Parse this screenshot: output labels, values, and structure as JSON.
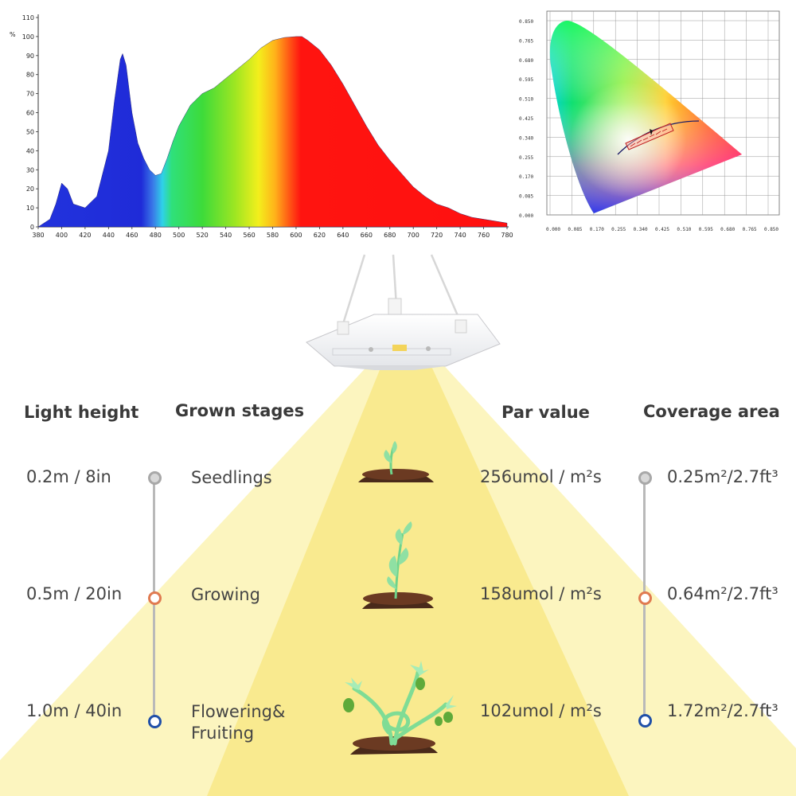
{
  "spectrum_chart": {
    "type": "area",
    "unit_label": "%",
    "x_ticks": [
      "380",
      "400",
      "420",
      "440",
      "460",
      "480",
      "500",
      "520",
      "540",
      "560",
      "580",
      "600",
      "620",
      "640",
      "660",
      "680",
      "700",
      "720",
      "740",
      "760",
      "780"
    ],
    "y_ticks": [
      "0",
      "10",
      "20",
      "30",
      "40",
      "50",
      "60",
      "70",
      "80",
      "90",
      "100",
      "110"
    ],
    "xlim": [
      380,
      780
    ],
    "ylim": [
      0,
      110
    ]
  },
  "chart_data": {
    "type": "area",
    "title": "",
    "xlabel": "",
    "ylabel": "%",
    "xlim": [
      380,
      780
    ],
    "ylim": [
      0,
      110
    ],
    "x": [
      380,
      390,
      395,
      400,
      405,
      410,
      420,
      430,
      440,
      445,
      450,
      452,
      455,
      460,
      465,
      470,
      475,
      480,
      485,
      490,
      495,
      500,
      510,
      520,
      530,
      540,
      550,
      560,
      570,
      580,
      590,
      600,
      605,
      610,
      620,
      630,
      640,
      650,
      660,
      670,
      680,
      690,
      700,
      710,
      720,
      730,
      740,
      750,
      760,
      770,
      780
    ],
    "values": [
      0,
      4,
      12,
      23,
      20,
      12,
      10,
      16,
      40,
      66,
      88,
      91,
      85,
      60,
      44,
      36,
      30,
      27,
      28,
      36,
      45,
      53,
      64,
      70,
      73,
      78,
      83,
      88,
      94,
      98,
      99.5,
      100,
      100,
      98,
      93,
      85,
      75,
      64,
      53,
      43,
      35,
      28,
      21,
      16,
      12,
      10,
      7,
      5,
      4,
      3,
      2
    ]
  },
  "cie_chart": {
    "y_ticks": [
      "0.850",
      "0.765",
      "0.680",
      "0.595",
      "0.510",
      "0.425",
      "0.340",
      "0.255",
      "0.170",
      "0.085",
      "0.000"
    ],
    "x_ticks": [
      "0.000",
      "0.085",
      "0.170",
      "0.255",
      "0.340",
      "0.425",
      "0.510",
      "0.595",
      "0.680",
      "0.765",
      "0.850"
    ]
  },
  "headers": {
    "light_height": "Light height",
    "grown_stages": "Grown stages",
    "par_value": "Par value",
    "coverage_area": "Coverage area"
  },
  "rows": [
    {
      "height": "0.2m / 8in",
      "stage": "Seedlings",
      "stage2": "",
      "par": "256umol / m²s",
      "coverage": "0.25m²/2.7ft³",
      "dot_color": "#a8a8a8"
    },
    {
      "height": "0.5m / 20in",
      "stage": "Growing",
      "stage2": "",
      "par": "158umol / m²s",
      "coverage": "0.64m²/2.7ft³",
      "dot_color": "#e07a50"
    },
    {
      "height": "1.0m / 40in",
      "stage": "Flowering&",
      "stage2": "Fruiting",
      "par": "102umol / m²s",
      "coverage": "1.72m²/2.7ft³",
      "dot_color": "#1f4fa8"
    }
  ],
  "colors": {
    "beam_outer": "#fcf4b8",
    "beam_inner": "#f9e98a",
    "text": "#444444",
    "line": "#b9b9b9"
  }
}
